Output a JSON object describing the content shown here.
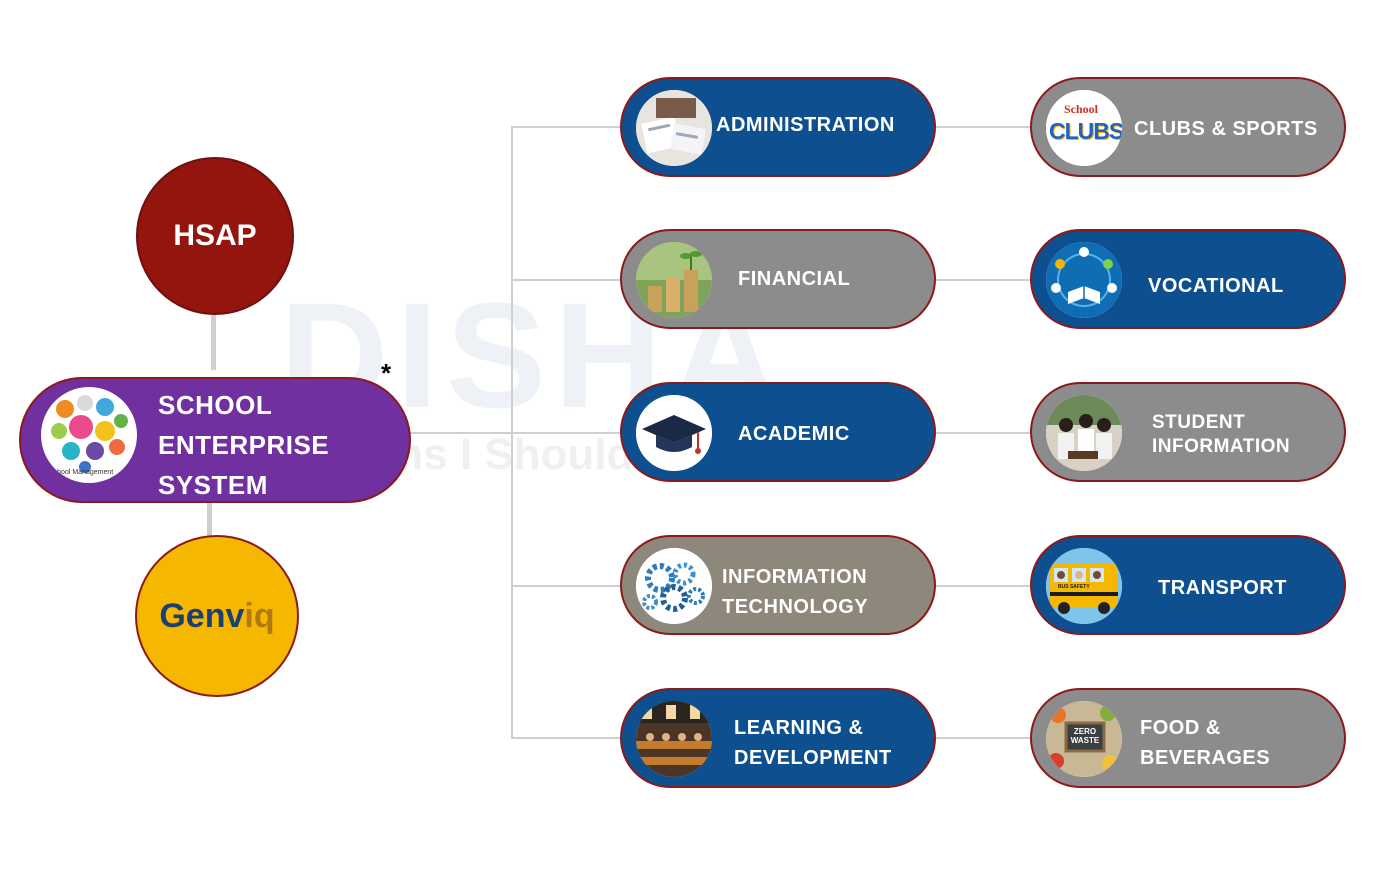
{
  "hsap": "HSAP",
  "genviq": {
    "part1": "Genv",
    "part2": "iq"
  },
  "central": {
    "lines": [
      "SCHOOL",
      "ENTERPRISE",
      "SYSTEM"
    ],
    "icon_caption": "School Management",
    "asterisk": "*"
  },
  "watermark": {
    "brand": "DISHA",
    "tagline": "Aims I Should Achieve"
  },
  "left_column": [
    {
      "label_lines": [
        "ADMINISTRATION"
      ],
      "icon": "administration-icon",
      "color": "#0d4f8f"
    },
    {
      "label_lines": [
        "FINANCIAL"
      ],
      "icon": "financial-icon",
      "color": "#8c8c8c"
    },
    {
      "label_lines": [
        "ACADEMIC"
      ],
      "icon": "graduation-cap-icon",
      "color": "#0d4f8f"
    },
    {
      "label_lines": [
        "INFORMATION",
        "TECHNOLOGY"
      ],
      "icon": "gears-icon",
      "color": "#8d877c"
    },
    {
      "label_lines": [
        "LEARNING &",
        "DEVELOPMENT"
      ],
      "icon": "classroom-icon",
      "color": "#0d4f8f"
    }
  ],
  "right_column": [
    {
      "label_lines": [
        "CLUBS & SPORTS"
      ],
      "icon": "school-clubs-icon",
      "icon_text": {
        "school": "School",
        "clubs": "CLUBS"
      },
      "color": "#8c8c8c"
    },
    {
      "label_lines": [
        "VOCATIONAL"
      ],
      "icon": "vocational-icon",
      "color": "#0d4f8f"
    },
    {
      "label_lines": [
        "STUDENT",
        "INFORMATION"
      ],
      "icon": "students-icon",
      "color": "#8c8c8c"
    },
    {
      "label_lines": [
        "TRANSPORT"
      ],
      "icon": "school-bus-icon",
      "icon_text": {
        "bus": "BUS SAFETY"
      },
      "color": "#0d4f8f"
    },
    {
      "label_lines": [
        "FOOD &",
        "BEVERAGES"
      ],
      "icon": "zero-waste-icon",
      "icon_text": {
        "sign": "ZERO WASTE"
      },
      "color": "#8c8c8c"
    }
  ]
}
